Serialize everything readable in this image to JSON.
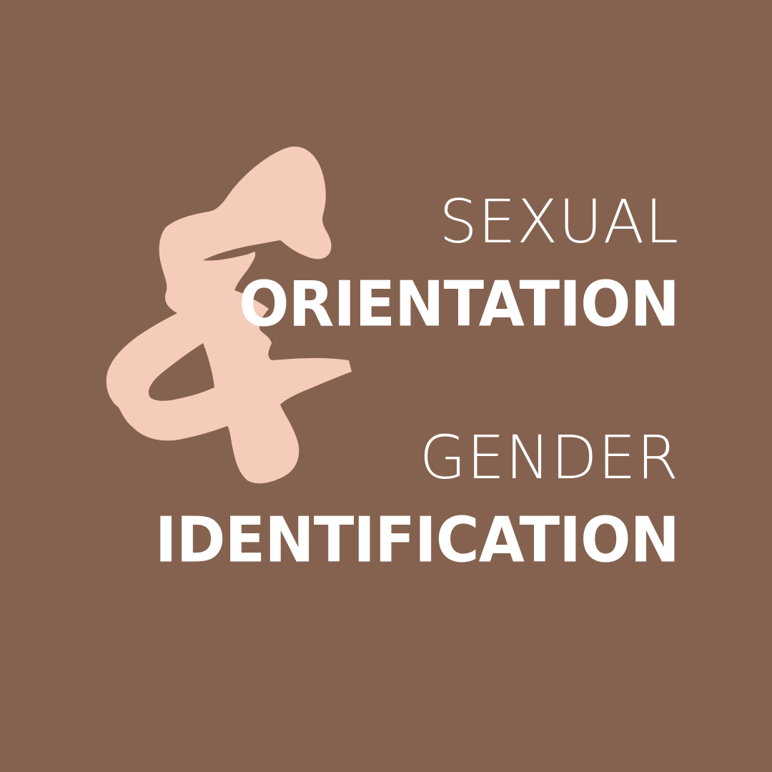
{
  "colors": {
    "background": "#85624f",
    "ampersand": "#f5cbb9",
    "text": "#ffffff"
  },
  "headline": {
    "line1": "SEXUAL",
    "line2": "ORIENTATION",
    "line3": "GENDER",
    "line4": "IDENTIFICATION"
  },
  "decoration": {
    "glyph_icon": "brush-ampersand-icon"
  }
}
